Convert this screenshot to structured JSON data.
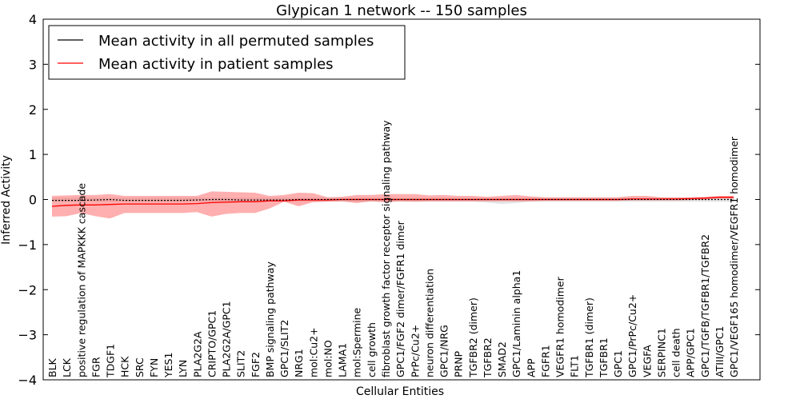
{
  "chart_data": {
    "type": "line",
    "title": "Glypican 1 network -- 150 samples",
    "xlabel": "Cellular Entities",
    "ylabel": "Inferred Activity",
    "ylim": [
      -4,
      4
    ],
    "yticks": [
      -4,
      -3,
      -2,
      -1,
      0,
      1,
      2,
      3,
      4
    ],
    "ytick_labels": [
      "−4",
      "−3",
      "−2",
      "−1",
      "0",
      "1",
      "2",
      "3",
      "4"
    ],
    "grid": false,
    "legend_position": "top-left",
    "categories": [
      "BLK",
      "LCK",
      "positive regulation of MAPKKK cascade",
      "FGR",
      "TDGF1",
      "HCK",
      "SRC",
      "FYN",
      "YES1",
      "LYN",
      "PLA2G2A",
      "CRIPTO/GPC1",
      "PLA2G2A/GPC1",
      "SLIT2",
      "FGF2",
      "BMP signaling pathway",
      "GPC1/SLIT2",
      "NRG1",
      "mol:Cu2+",
      "mol:NO",
      "LAMA1",
      "mol:Spermine",
      "cell growth",
      "fibroblast growth factor receptor signaling pathway",
      "GPC1/FGF2 dimer/FGFR1 dimer",
      "PrPc/Cu2+",
      "neuron differentiation",
      "GPC1/NRG",
      "PRNP",
      "TGFBR2 (dimer)",
      "TGFBR2",
      "SMAD2",
      "GPC1/Laminin alpha1",
      "APP",
      "FGFR1",
      "VEGFR1 homodimer",
      "FLT1",
      "TGFBR1 (dimer)",
      "TGFBR1",
      "GPC1",
      "GPC1/PrPc/Cu2+",
      "VEGFA",
      "SERPINC1",
      "cell death",
      "APP/GPC1",
      "GPC1/TGFB/TGFBR1/TGFBR2",
      "ATIII/GPC1",
      "GPC1/VEGF165 homodimer/VEGFR1 homodimer"
    ],
    "series": [
      {
        "name": "Mean activity in all permuted samples",
        "color": "#000000",
        "values": [
          -0.02,
          -0.02,
          -0.02,
          -0.01,
          0.0,
          -0.02,
          -0.02,
          -0.02,
          -0.02,
          -0.02,
          -0.01,
          0.0,
          0.0,
          -0.01,
          -0.01,
          -0.01,
          -0.01,
          0.0,
          0.0,
          0.0,
          0.0,
          0.0,
          0.0,
          0.0,
          0.0,
          0.0,
          0.0,
          0.0,
          0.0,
          0.0,
          0.0,
          0.0,
          0.0,
          0.0,
          0.0,
          0.0,
          0.0,
          0.0,
          0.0,
          0.0,
          0.0,
          0.0,
          0.0,
          0.0,
          0.0,
          0.0,
          0.0,
          0.0
        ],
        "band_lower": [
          -0.05,
          -0.05,
          -0.05,
          -0.05,
          -0.05,
          -0.05,
          -0.05,
          -0.05,
          -0.05,
          -0.05,
          -0.05,
          -0.05,
          -0.05,
          -0.05,
          -0.05,
          -0.05,
          -0.05,
          -0.05,
          -0.05,
          -0.05,
          -0.05,
          -0.05,
          -0.05,
          -0.05,
          -0.05,
          -0.05,
          -0.05,
          -0.05,
          -0.05,
          -0.05,
          -0.07,
          -0.1,
          -0.08,
          -0.05,
          -0.05,
          -0.05,
          -0.05,
          -0.05,
          -0.05,
          -0.05,
          -0.05,
          -0.05,
          -0.05,
          -0.05,
          -0.05,
          -0.05,
          -0.05,
          -0.05
        ],
        "band_upper": [
          0.04,
          0.04,
          0.04,
          0.04,
          0.04,
          0.04,
          0.04,
          0.04,
          0.04,
          0.04,
          0.04,
          0.04,
          0.04,
          0.04,
          0.04,
          0.04,
          0.04,
          0.04,
          0.04,
          0.04,
          0.04,
          0.04,
          0.04,
          0.04,
          0.04,
          0.04,
          0.04,
          0.04,
          0.04,
          0.04,
          0.04,
          0.04,
          0.04,
          0.04,
          0.04,
          0.04,
          0.04,
          0.04,
          0.04,
          0.04,
          0.04,
          0.04,
          0.04,
          0.04,
          0.04,
          0.04,
          0.04,
          0.04
        ]
      },
      {
        "name": "Mean activity in patient samples",
        "color": "#ff0000",
        "values": [
          -0.15,
          -0.13,
          -0.12,
          -0.12,
          -0.11,
          -0.1,
          -0.1,
          -0.1,
          -0.1,
          -0.1,
          -0.09,
          -0.07,
          -0.06,
          -0.05,
          -0.05,
          -0.03,
          -0.03,
          -0.01,
          -0.01,
          -0.01,
          0.0,
          0.0,
          0.0,
          0.0,
          0.0,
          0.0,
          0.0,
          0.0,
          0.0,
          0.0,
          0.0,
          0.0,
          0.0,
          0.0,
          0.0,
          0.0,
          0.0,
          0.0,
          0.0,
          0.0,
          0.01,
          0.01,
          0.01,
          0.01,
          0.02,
          0.03,
          0.05,
          0.05
        ],
        "band_lower": [
          -0.38,
          -0.37,
          -0.3,
          -0.37,
          -0.42,
          -0.3,
          -0.3,
          -0.3,
          -0.3,
          -0.3,
          -0.28,
          -0.38,
          -0.32,
          -0.3,
          -0.3,
          -0.2,
          -0.05,
          -0.15,
          -0.06,
          -0.05,
          -0.04,
          -0.08,
          -0.04,
          -0.06,
          -0.04,
          -0.05,
          -0.04,
          -0.04,
          -0.04,
          -0.04,
          -0.04,
          -0.04,
          -0.04,
          -0.04,
          -0.03,
          -0.03,
          -0.03,
          -0.03,
          -0.03,
          -0.03,
          -0.02,
          -0.02,
          -0.02,
          -0.02,
          -0.01,
          0.0,
          0.02,
          0.02
        ],
        "band_upper": [
          0.08,
          0.09,
          0.1,
          0.1,
          0.12,
          0.08,
          0.08,
          0.08,
          0.08,
          0.08,
          0.08,
          0.18,
          0.17,
          0.16,
          0.15,
          0.08,
          0.1,
          0.15,
          0.14,
          0.05,
          0.06,
          0.1,
          0.1,
          0.12,
          0.12,
          0.12,
          0.09,
          0.1,
          0.08,
          0.08,
          0.06,
          0.08,
          0.1,
          0.07,
          0.05,
          0.05,
          0.05,
          0.05,
          0.05,
          0.05,
          0.08,
          0.08,
          0.05,
          0.05,
          0.05,
          0.06,
          0.08,
          0.08
        ]
      }
    ]
  }
}
